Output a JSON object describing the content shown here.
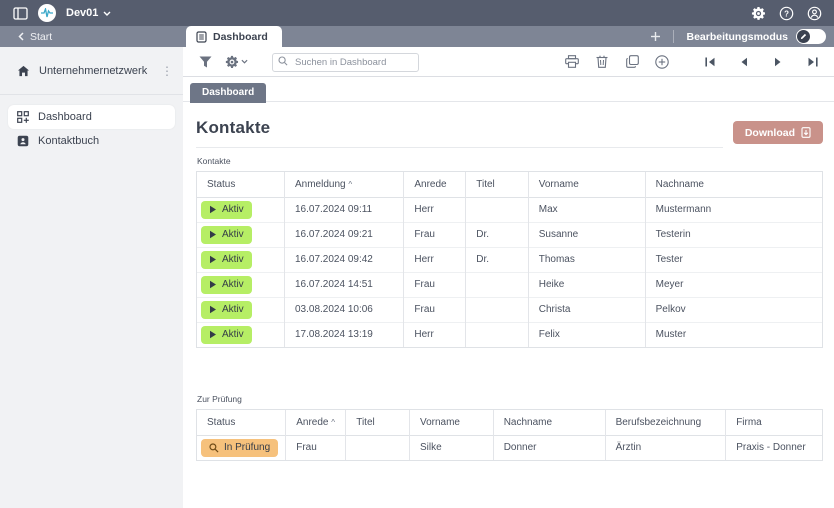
{
  "colors": {
    "topbar_bg": "#565d6e",
    "tabbar_bg": "#7e8595",
    "subtab_bg": "#6e7687",
    "active_badge_bg": "#b6ee65",
    "review_badge_bg": "#f6c17c",
    "download_button_bg": "#c9928a",
    "sidebar_bg": "#f1f2f4"
  },
  "topbar": {
    "workspace": "Dev01",
    "icons": [
      "sidebar-toggle-icon",
      "app-avatar-waveform",
      "chevron-down-icon",
      "gear-icon",
      "help-icon",
      "account-icon"
    ]
  },
  "tabbar": {
    "back_label": "Start",
    "tab_label": "Dashboard",
    "add_tab": "+",
    "edit_mode_label": "Bearbeitungsmodus",
    "edit_mode_state": "off"
  },
  "toolbar": {
    "search_placeholder": "Suchen in Dashboard",
    "icons": [
      "filter-icon",
      "settings-icon",
      "print-icon",
      "delete-icon",
      "copy-icon",
      "add-circle-icon",
      "first-page-icon",
      "prev-page-icon",
      "next-page-icon",
      "last-page-icon"
    ]
  },
  "sidebar": {
    "network_label": "Unternehmernetzwerk",
    "items": [
      {
        "label": "Dashboard",
        "active": true,
        "icon": "dashboard-grid-icon"
      },
      {
        "label": "Kontaktbuch",
        "active": false,
        "icon": "contact-book-icon"
      }
    ]
  },
  "main": {
    "subtab_label": "Dashboard",
    "title": "Kontakte",
    "download_label": "Download",
    "tables": [
      {
        "label": "Kontakte",
        "columns": [
          {
            "label": "Status",
            "sorted": false
          },
          {
            "label": "Anmeldung",
            "sorted": true
          },
          {
            "label": "Anrede",
            "sorted": false
          },
          {
            "label": "Titel",
            "sorted": false
          },
          {
            "label": "Vorname",
            "sorted": false
          },
          {
            "label": "Nachname",
            "sorted": false
          }
        ],
        "rows": [
          {
            "status": "Aktiv",
            "status_type": "active",
            "cells": [
              "16.07.2024 09:11",
              "Herr",
              "",
              "Max",
              "Mustermann"
            ]
          },
          {
            "status": "Aktiv",
            "status_type": "active",
            "cells": [
              "16.07.2024 09:21",
              "Frau",
              "Dr.",
              "Susanne",
              "Testerin"
            ]
          },
          {
            "status": "Aktiv",
            "status_type": "active",
            "cells": [
              "16.07.2024 09:42",
              "Herr",
              "Dr.",
              "Thomas",
              "Tester"
            ]
          },
          {
            "status": "Aktiv",
            "status_type": "active",
            "cells": [
              "16.07.2024 14:51",
              "Frau",
              "",
              "Heike",
              "Meyer"
            ]
          },
          {
            "status": "Aktiv",
            "status_type": "active",
            "cells": [
              "03.08.2024 10:06",
              "Frau",
              "",
              "Christa",
              "Pelkov"
            ]
          },
          {
            "status": "Aktiv",
            "status_type": "active",
            "cells": [
              "17.08.2024 13:19",
              "Herr",
              "",
              "Felix",
              "Muster"
            ]
          }
        ]
      },
      {
        "label": "Zur Prüfung",
        "columns": [
          {
            "label": "Status",
            "sorted": false
          },
          {
            "label": "Anrede",
            "sorted": true
          },
          {
            "label": "Titel",
            "sorted": false
          },
          {
            "label": "Vorname",
            "sorted": false
          },
          {
            "label": "Nachname",
            "sorted": false
          },
          {
            "label": "Berufsbezeichnung",
            "sorted": false
          },
          {
            "label": "Firma",
            "sorted": false
          }
        ],
        "rows": [
          {
            "status": "In Prüfung",
            "status_type": "review",
            "cells": [
              "Frau",
              "",
              "Silke",
              "Donner",
              "Ärztin",
              "Praxis - Donner"
            ]
          }
        ]
      }
    ]
  }
}
